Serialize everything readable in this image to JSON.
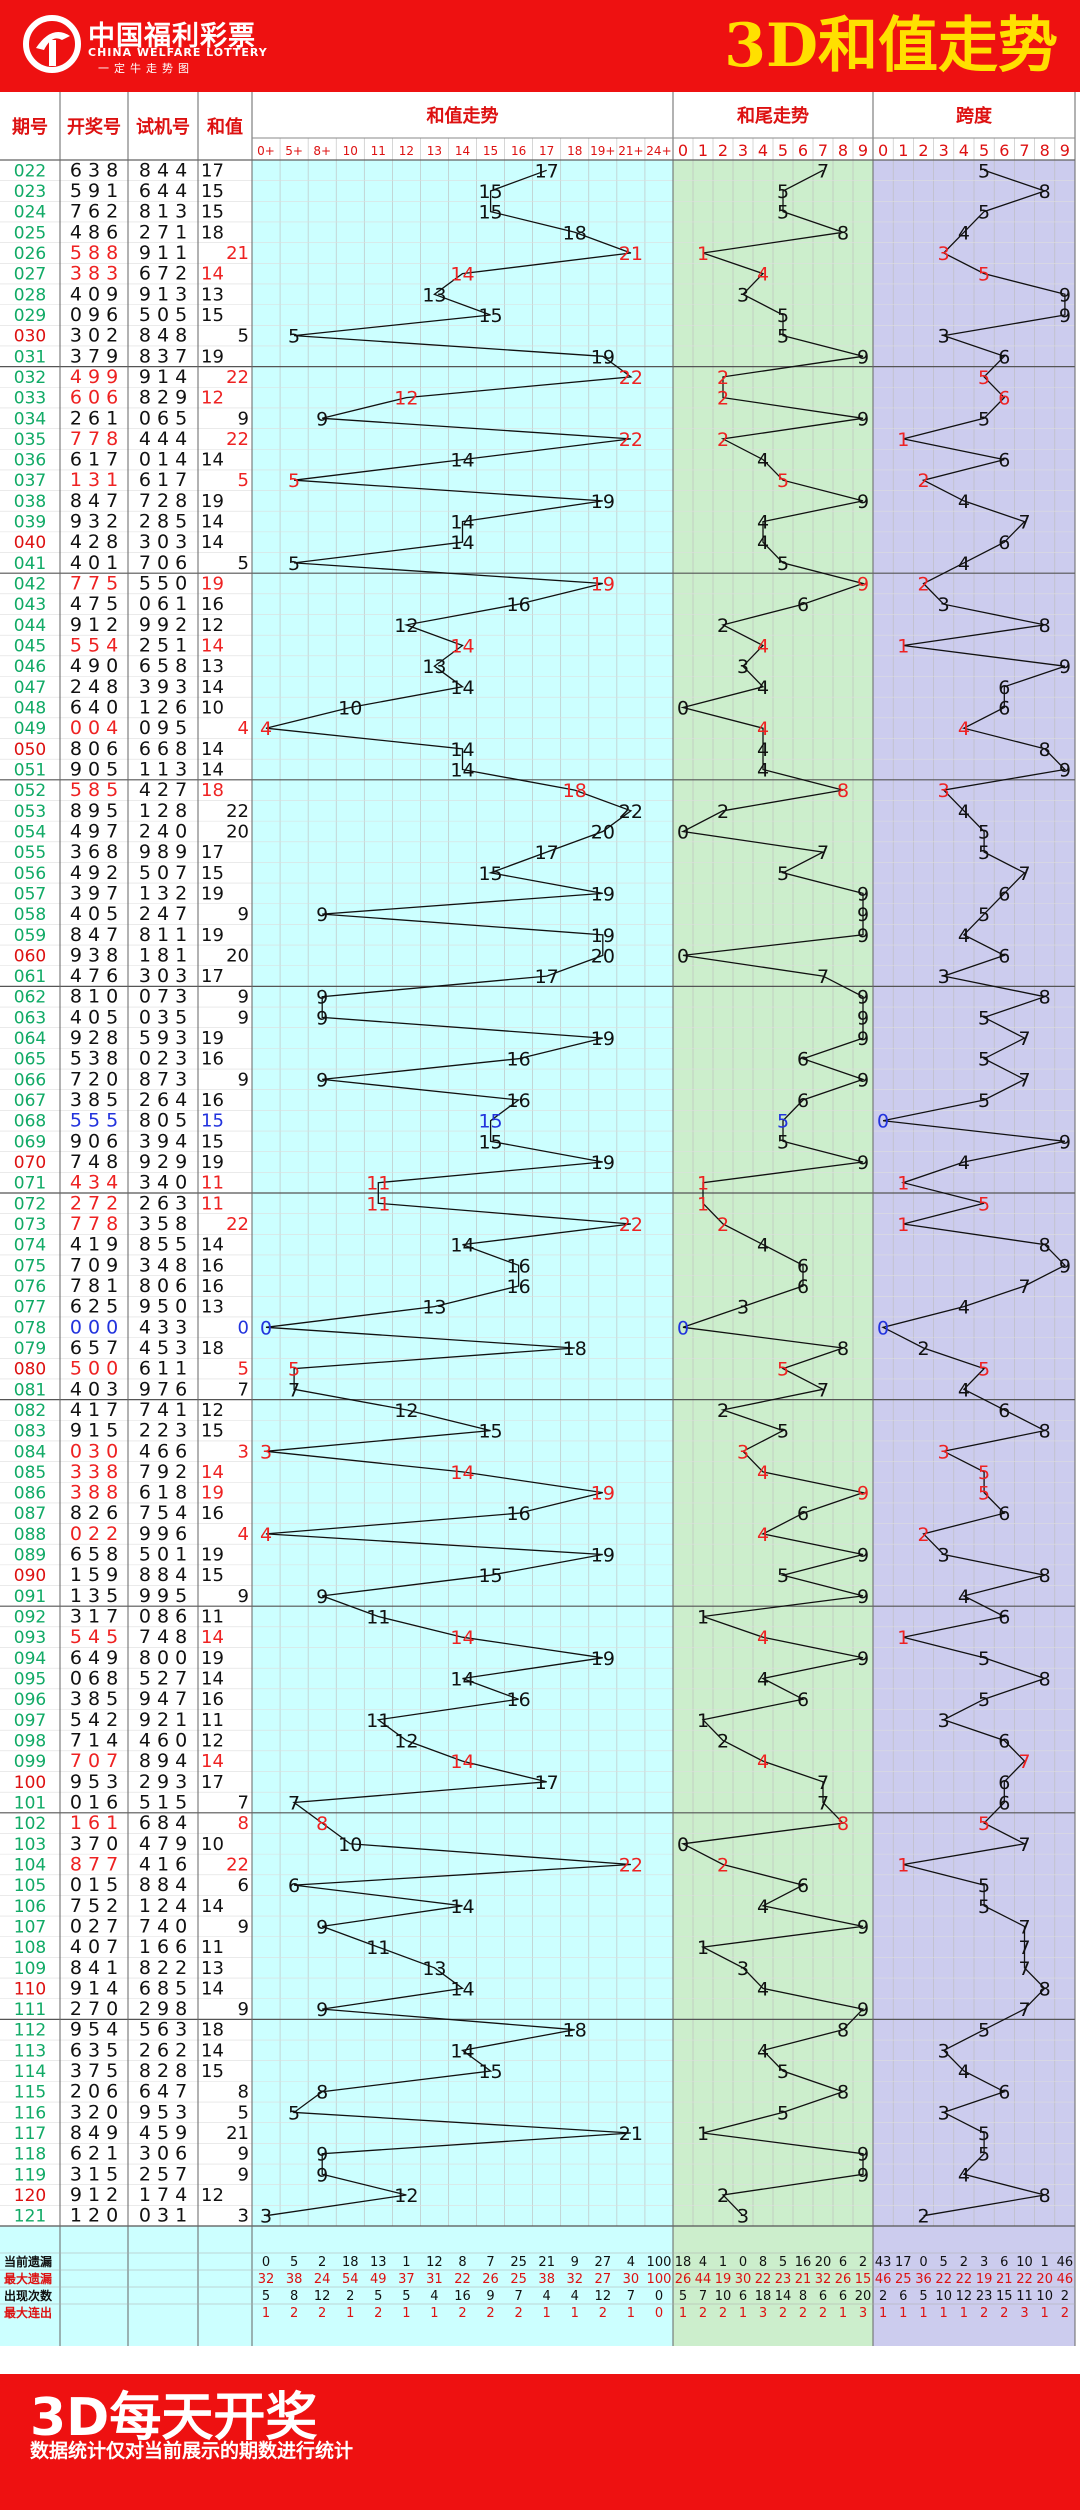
{
  "brand": {
    "name_cn": "中国福利彩票",
    "name_en": "CHINA WELFARE LOTTERY",
    "slogan": "一定牛走势图"
  },
  "title": "3D和值走势",
  "footer": {
    "title": "3D每天开奖",
    "note": "数据统计仅对当前展示的期数进行统计"
  },
  "colors": {
    "header_red": "#ee1111",
    "title_yellow": "#ffe000",
    "sum_bg": "#ccffff",
    "tail_bg": "#cceecc",
    "span_bg": "#ccccee",
    "red_num": "#ee2222",
    "blue_num": "#2233dd",
    "period_green": "#11aa66"
  },
  "chart_data": {
    "type": "table",
    "columns": {
      "period": "期号",
      "draw": "开奖号",
      "trial": "试机号",
      "sum": "和值",
      "sum_trend": "和值走势",
      "tail_trend": "和尾走势",
      "span": "跨度"
    },
    "sum_ticks": [
      "0+",
      "5+",
      "8+",
      "10",
      "11",
      "12",
      "13",
      "14",
      "15",
      "16",
      "17",
      "18",
      "19+",
      "21+",
      "24+"
    ],
    "digit_ticks": [
      "0",
      "1",
      "2",
      "3",
      "4",
      "5",
      "6",
      "7",
      "8",
      "9"
    ],
    "rows": [
      {
        "period": "022",
        "draw": "638",
        "trial": "844",
        "sum": 17
      },
      {
        "period": "023",
        "draw": "591",
        "trial": "644",
        "sum": 15
      },
      {
        "period": "024",
        "draw": "762",
        "trial": "813",
        "sum": 15
      },
      {
        "period": "025",
        "draw": "486",
        "trial": "271",
        "sum": 18
      },
      {
        "period": "026",
        "draw": "588",
        "trial": "911",
        "sum": 21
      },
      {
        "period": "027",
        "draw": "383",
        "trial": "672",
        "sum": 14
      },
      {
        "period": "028",
        "draw": "409",
        "trial": "913",
        "sum": 13
      },
      {
        "period": "029",
        "draw": "096",
        "trial": "505",
        "sum": 15
      },
      {
        "period": "030",
        "draw": "302",
        "trial": "848",
        "sum": 5
      },
      {
        "period": "031",
        "draw": "379",
        "trial": "837",
        "sum": 19
      },
      {
        "period": "032",
        "draw": "499",
        "trial": "914",
        "sum": 22
      },
      {
        "period": "033",
        "draw": "606",
        "trial": "829",
        "sum": 12
      },
      {
        "period": "034",
        "draw": "261",
        "trial": "065",
        "sum": 9
      },
      {
        "period": "035",
        "draw": "778",
        "trial": "444",
        "sum": 22
      },
      {
        "period": "036",
        "draw": "617",
        "trial": "014",
        "sum": 14
      },
      {
        "period": "037",
        "draw": "131",
        "trial": "617",
        "sum": 5
      },
      {
        "period": "038",
        "draw": "847",
        "trial": "728",
        "sum": 19
      },
      {
        "period": "039",
        "draw": "932",
        "trial": "285",
        "sum": 14
      },
      {
        "period": "040",
        "draw": "428",
        "trial": "303",
        "sum": 14
      },
      {
        "period": "041",
        "draw": "401",
        "trial": "706",
        "sum": 5
      },
      {
        "period": "042",
        "draw": "775",
        "trial": "550",
        "sum": 19
      },
      {
        "period": "043",
        "draw": "475",
        "trial": "061",
        "sum": 16
      },
      {
        "period": "044",
        "draw": "912",
        "trial": "992",
        "sum": 12
      },
      {
        "period": "045",
        "draw": "554",
        "trial": "251",
        "sum": 14
      },
      {
        "period": "046",
        "draw": "490",
        "trial": "658",
        "sum": 13
      },
      {
        "period": "047",
        "draw": "248",
        "trial": "393",
        "sum": 14
      },
      {
        "period": "048",
        "draw": "640",
        "trial": "126",
        "sum": 10
      },
      {
        "period": "049",
        "draw": "004",
        "trial": "095",
        "sum": 4
      },
      {
        "period": "050",
        "draw": "806",
        "trial": "668",
        "sum": 14
      },
      {
        "period": "051",
        "draw": "905",
        "trial": "113",
        "sum": 14
      },
      {
        "period": "052",
        "draw": "585",
        "trial": "427",
        "sum": 18
      },
      {
        "period": "053",
        "draw": "895",
        "trial": "128",
        "sum": 22
      },
      {
        "period": "054",
        "draw": "497",
        "trial": "240",
        "sum": 20
      },
      {
        "period": "055",
        "draw": "368",
        "trial": "989",
        "sum": 17
      },
      {
        "period": "056",
        "draw": "492",
        "trial": "507",
        "sum": 15
      },
      {
        "period": "057",
        "draw": "397",
        "trial": "132",
        "sum": 19
      },
      {
        "period": "058",
        "draw": "405",
        "trial": "247",
        "sum": 9
      },
      {
        "period": "059",
        "draw": "847",
        "trial": "811",
        "sum": 19
      },
      {
        "period": "060",
        "draw": "938",
        "trial": "181",
        "sum": 20
      },
      {
        "period": "061",
        "draw": "476",
        "trial": "303",
        "sum": 17
      },
      {
        "period": "062",
        "draw": "810",
        "trial": "073",
        "sum": 9
      },
      {
        "period": "063",
        "draw": "405",
        "trial": "035",
        "sum": 9
      },
      {
        "period": "064",
        "draw": "928",
        "trial": "593",
        "sum": 19
      },
      {
        "period": "065",
        "draw": "538",
        "trial": "023",
        "sum": 16
      },
      {
        "period": "066",
        "draw": "720",
        "trial": "873",
        "sum": 9
      },
      {
        "period": "067",
        "draw": "385",
        "trial": "264",
        "sum": 16
      },
      {
        "period": "068",
        "draw": "555",
        "trial": "805",
        "sum": 15
      },
      {
        "period": "069",
        "draw": "906",
        "trial": "394",
        "sum": 15
      },
      {
        "period": "070",
        "draw": "748",
        "trial": "929",
        "sum": 19
      },
      {
        "period": "071",
        "draw": "434",
        "trial": "340",
        "sum": 11
      },
      {
        "period": "072",
        "draw": "272",
        "trial": "263",
        "sum": 11
      },
      {
        "period": "073",
        "draw": "778",
        "trial": "358",
        "sum": 22
      },
      {
        "period": "074",
        "draw": "419",
        "trial": "855",
        "sum": 14
      },
      {
        "period": "075",
        "draw": "709",
        "trial": "348",
        "sum": 16
      },
      {
        "period": "076",
        "draw": "781",
        "trial": "806",
        "sum": 16
      },
      {
        "period": "077",
        "draw": "625",
        "trial": "950",
        "sum": 13
      },
      {
        "period": "078",
        "draw": "000",
        "trial": "433",
        "sum": 0
      },
      {
        "period": "079",
        "draw": "657",
        "trial": "453",
        "sum": 18
      },
      {
        "period": "080",
        "draw": "500",
        "trial": "611",
        "sum": 5
      },
      {
        "period": "081",
        "draw": "403",
        "trial": "976",
        "sum": 7
      },
      {
        "period": "082",
        "draw": "417",
        "trial": "741",
        "sum": 12
      },
      {
        "period": "083",
        "draw": "915",
        "trial": "223",
        "sum": 15
      },
      {
        "period": "084",
        "draw": "030",
        "trial": "466",
        "sum": 3
      },
      {
        "period": "085",
        "draw": "338",
        "trial": "792",
        "sum": 14
      },
      {
        "period": "086",
        "draw": "388",
        "trial": "618",
        "sum": 19
      },
      {
        "period": "087",
        "draw": "826",
        "trial": "754",
        "sum": 16
      },
      {
        "period": "088",
        "draw": "022",
        "trial": "996",
        "sum": 4
      },
      {
        "period": "089",
        "draw": "658",
        "trial": "501",
        "sum": 19
      },
      {
        "period": "090",
        "draw": "159",
        "trial": "884",
        "sum": 15
      },
      {
        "period": "091",
        "draw": "135",
        "trial": "995",
        "sum": 9
      },
      {
        "period": "092",
        "draw": "317",
        "trial": "086",
        "sum": 11
      },
      {
        "period": "093",
        "draw": "545",
        "trial": "748",
        "sum": 14
      },
      {
        "period": "094",
        "draw": "649",
        "trial": "800",
        "sum": 19
      },
      {
        "period": "095",
        "draw": "068",
        "trial": "527",
        "sum": 14
      },
      {
        "period": "096",
        "draw": "385",
        "trial": "947",
        "sum": 16
      },
      {
        "period": "097",
        "draw": "542",
        "trial": "921",
        "sum": 11
      },
      {
        "period": "098",
        "draw": "714",
        "trial": "460",
        "sum": 12
      },
      {
        "period": "099",
        "draw": "707",
        "trial": "894",
        "sum": 14
      },
      {
        "period": "100",
        "draw": "953",
        "trial": "293",
        "sum": 17
      },
      {
        "period": "101",
        "draw": "016",
        "trial": "515",
        "sum": 7
      },
      {
        "period": "102",
        "draw": "161",
        "trial": "684",
        "sum": 8
      },
      {
        "period": "103",
        "draw": "370",
        "trial": "479",
        "sum": 10
      },
      {
        "period": "104",
        "draw": "877",
        "trial": "416",
        "sum": 22
      },
      {
        "period": "105",
        "draw": "015",
        "trial": "884",
        "sum": 6
      },
      {
        "period": "106",
        "draw": "752",
        "trial": "124",
        "sum": 14
      },
      {
        "period": "107",
        "draw": "027",
        "trial": "740",
        "sum": 9
      },
      {
        "period": "108",
        "draw": "407",
        "trial": "166",
        "sum": 11
      },
      {
        "period": "109",
        "draw": "841",
        "trial": "822",
        "sum": 13
      },
      {
        "period": "110",
        "draw": "914",
        "trial": "685",
        "sum": 14
      },
      {
        "period": "111",
        "draw": "270",
        "trial": "298",
        "sum": 9
      },
      {
        "period": "112",
        "draw": "954",
        "trial": "563",
        "sum": 18
      },
      {
        "period": "113",
        "draw": "635",
        "trial": "262",
        "sum": 14
      },
      {
        "period": "114",
        "draw": "375",
        "trial": "828",
        "sum": 15
      },
      {
        "period": "115",
        "draw": "206",
        "trial": "647",
        "sum": 8
      },
      {
        "period": "116",
        "draw": "320",
        "trial": "953",
        "sum": 5
      },
      {
        "period": "117",
        "draw": "849",
        "trial": "459",
        "sum": 21
      },
      {
        "period": "118",
        "draw": "621",
        "trial": "306",
        "sum": 9
      },
      {
        "period": "119",
        "draw": "315",
        "trial": "257",
        "sum": 9
      },
      {
        "period": "120",
        "draw": "912",
        "trial": "174",
        "sum": 12
      },
      {
        "period": "121",
        "draw": "120",
        "trial": "031",
        "sum": 3
      }
    ],
    "stats": {
      "labels": [
        "当前遗漏",
        "最大遗漏",
        "出现次数",
        "最大连出"
      ],
      "sum_trend": [
        [
          0,
          5,
          2,
          18,
          13,
          1,
          12,
          8,
          7,
          25,
          21,
          9,
          27,
          4,
          100
        ],
        [
          32,
          38,
          24,
          54,
          49,
          37,
          31,
          22,
          26,
          25,
          38,
          32,
          27,
          30,
          100
        ],
        [
          5,
          8,
          12,
          2,
          5,
          5,
          4,
          16,
          9,
          7,
          4,
          4,
          12,
          7,
          0
        ],
        [
          1,
          2,
          2,
          1,
          2,
          1,
          1,
          2,
          2,
          2,
          1,
          1,
          2,
          1,
          0
        ]
      ],
      "tail_trend": [
        [
          18,
          4,
          1,
          0,
          8,
          5,
          16,
          20,
          6,
          2
        ],
        [
          26,
          44,
          19,
          30,
          22,
          23,
          21,
          32,
          26,
          15
        ],
        [
          5,
          7,
          10,
          6,
          18,
          14,
          8,
          6,
          6,
          20
        ],
        [
          1,
          2,
          2,
          1,
          3,
          2,
          2,
          2,
          1,
          3
        ]
      ],
      "span": [
        [
          43,
          17,
          0,
          5,
          2,
          3,
          6,
          10,
          1,
          46
        ],
        [
          46,
          25,
          36,
          22,
          22,
          19,
          21,
          22,
          20,
          46
        ],
        [
          2,
          6,
          5,
          10,
          12,
          23,
          15,
          11,
          10,
          2
        ],
        [
          1,
          1,
          1,
          1,
          1,
          2,
          2,
          3,
          1,
          2
        ]
      ]
    }
  }
}
